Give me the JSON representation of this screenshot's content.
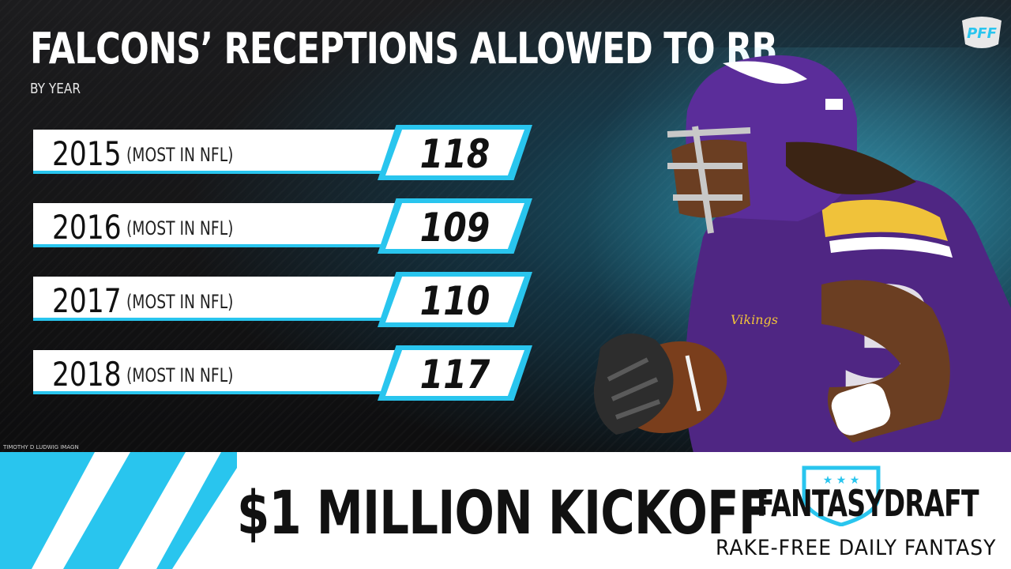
{
  "header": {
    "title": "FALCONS’ RECEPTIONS ALLOWED TO RB",
    "subtitle": "BY YEAR",
    "pff_logo": "PFF"
  },
  "chart_data": {
    "type": "table",
    "title": "FALCONS’ RECEPTIONS ALLOWED TO RB",
    "subtitle": "BY YEAR",
    "categories": [
      "2015",
      "2016",
      "2017",
      "2018"
    ],
    "notes": [
      "(MOST IN NFL)",
      "(MOST IN NFL)",
      "(MOST IN NFL)",
      "(MOST IN NFL)"
    ],
    "values": [
      118,
      109,
      110,
      117
    ],
    "rows": [
      {
        "year": "2015",
        "note": "(MOST IN NFL)",
        "value": "118"
      },
      {
        "year": "2016",
        "note": "(MOST IN NFL)",
        "value": "109"
      },
      {
        "year": "2017",
        "note": "(MOST IN NFL)",
        "value": "110"
      },
      {
        "year": "2018",
        "note": "(MOST IN NFL)",
        "value": "117"
      }
    ]
  },
  "photo": {
    "credit": "TIMOTHY D LUDWIG IMAGN",
    "jersey_text": "Vikings"
  },
  "banner": {
    "headline": "$1 MILLION KICKOFF",
    "brand": "FANTASYDRAFT",
    "tagline": "RAKE-FREE DAILY FANTASY"
  },
  "colors": {
    "accent": "#29c5ee",
    "purple": "#5b2d9a",
    "gold": "#f0c23a"
  }
}
